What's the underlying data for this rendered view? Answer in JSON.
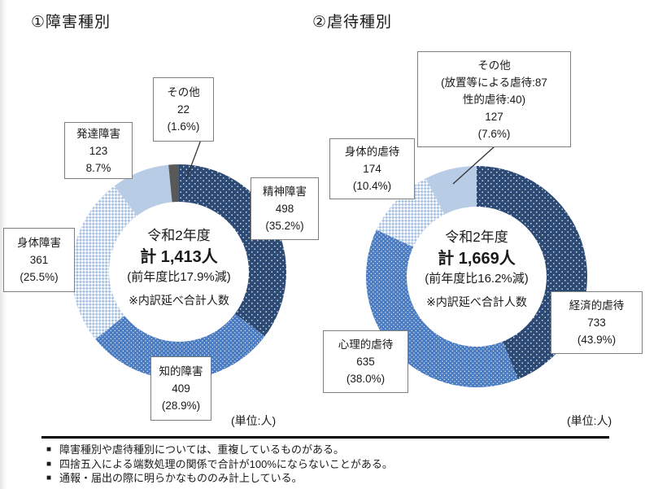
{
  "page": {
    "charts": [
      {
        "title": "①障害種別",
        "center": {
          "year": "令和2年度",
          "total": "計 1,413人",
          "yoy": "(前年度比17.9%減)",
          "note": "※内訳延べ合計人数"
        },
        "unit": "(単位:人)",
        "boxes": [
          {
            "lines": [
              "その他",
              "22",
              "(1.6%)"
            ]
          },
          {
            "lines": [
              "発達障害",
              "123",
              "8.7%"
            ]
          },
          {
            "lines": [
              "精神障害",
              "498",
              "(35.2%)"
            ]
          },
          {
            "lines": [
              "身体障害",
              "361",
              "(25.5%)"
            ]
          },
          {
            "lines": [
              "知的障害",
              "409",
              "(28.9%)"
            ]
          }
        ]
      },
      {
        "title": "②虐待種別",
        "center": {
          "year": "令和2年度",
          "total": "計 1,669人",
          "yoy": "(前年度比16.2%減)",
          "note": "※内訳延べ合計人数"
        },
        "unit": "(単位:人)",
        "boxes": [
          {
            "lines": [
              "その他",
              "(放置等による虐待:87",
              "性的虐待:40)",
              "127",
              "(7.6%)"
            ]
          },
          {
            "lines": [
              "身体的虐待",
              "174",
              "(10.4%)"
            ]
          },
          {
            "lines": [
              "経済的虐待",
              "733",
              "(43.9%)"
            ]
          },
          {
            "lines": [
              "心理的虐待",
              "635",
              "(38.0%)"
            ]
          }
        ]
      }
    ],
    "bullet_icon": "■",
    "notes": [
      "障害種別や虐待種別については、重複しているものがある。",
      "四捨五入による端数処理の関係で合計が100%にならないことがある。",
      "通報・届出の際に明らかなもののみ計上している。"
    ]
  },
  "colors": {
    "navy": "#2c4a74",
    "blue": "#4b7cc1",
    "light_blue": "#b9cce6",
    "crosshatch_fg": "#a9c2e2",
    "gray": "#595959",
    "box_border": "#7f7f7f"
  },
  "chart_data": [
    {
      "type": "pie",
      "subtype": "donut",
      "title": "①障害種別",
      "unit": "人",
      "total": 1413,
      "start_angle_deg": -90,
      "direction": "clockwise",
      "categories": [
        "精神障害",
        "知的障害",
        "身体障害",
        "発達障害",
        "その他"
      ],
      "values": [
        498,
        409,
        361,
        123,
        22
      ],
      "percents": [
        35.2,
        28.9,
        25.5,
        8.7,
        1.6
      ],
      "styles": [
        "navy-dots",
        "blue-dots",
        "light-crosshatch",
        "light-solid",
        "gray"
      ],
      "center_label": [
        "令和2年度",
        "計 1,413人",
        "(前年度比17.9%減)",
        "※内訳延べ合計人数"
      ]
    },
    {
      "type": "pie",
      "subtype": "donut",
      "title": "②虐待種別",
      "unit": "人",
      "total": 1669,
      "start_angle_deg": -90,
      "direction": "clockwise",
      "categories": [
        "経済的虐待",
        "心理的虐待",
        "身体的虐待",
        "その他"
      ],
      "values": [
        733,
        635,
        174,
        127
      ],
      "percents": [
        43.9,
        38.0,
        10.4,
        7.6
      ],
      "styles": [
        "navy-dots",
        "blue-dots",
        "light-crosshatch",
        "light-solid"
      ],
      "center_label": [
        "令和2年度",
        "計 1,669人",
        "(前年度比16.2%減)",
        "※内訳延べ合計人数"
      ],
      "other_breakdown": {
        "放置等による虐待": 87,
        "性的虐待": 40
      }
    }
  ]
}
